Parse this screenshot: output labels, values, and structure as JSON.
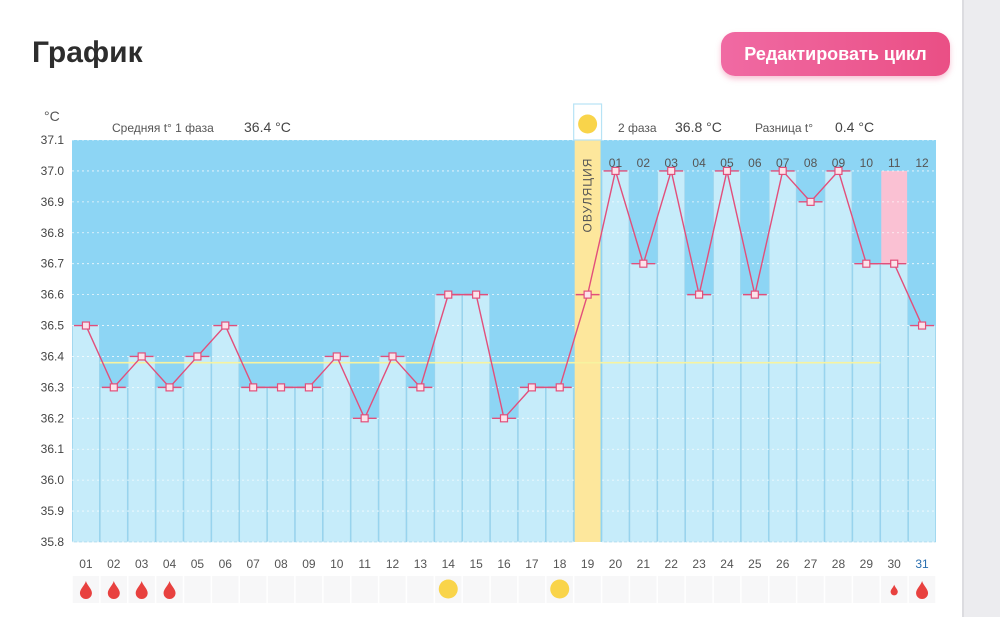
{
  "header": {
    "title": "График",
    "edit_button_label": "Редактировать цикл"
  },
  "stats": {
    "unit": "°C",
    "phase1_label": "Средняя t° 1 фаза",
    "phase1_value": "36.4 °C",
    "phase2_label": "2 фаза",
    "phase2_value": "36.8 °C",
    "diff_label": "Разница t°",
    "diff_value": "0.4 °C"
  },
  "colors": {
    "chart_bg": "#8dd5f4",
    "bar_fill": "#c6ecfa",
    "line": "#e24f7b",
    "ovulation": "#fde79c",
    "highlight_bar": "#fac1d3",
    "coverline": "#f7f3a0",
    "accent": "#ea4f85"
  },
  "chart_data": {
    "type": "bar",
    "ylabel": "°C",
    "ylim": [
      35.8,
      37.1
    ],
    "yticks": [
      "37.1",
      "37.0",
      "36.9",
      "36.8",
      "36.7",
      "36.6",
      "36.5",
      "36.4",
      "36.3",
      "36.2",
      "36.1",
      "36.0",
      "35.9",
      "35.8"
    ],
    "categories": [
      "01",
      "02",
      "03",
      "04",
      "05",
      "06",
      "07",
      "08",
      "09",
      "10",
      "11",
      "12",
      "13",
      "14",
      "15",
      "16",
      "17",
      "18",
      "19",
      "20",
      "21",
      "22",
      "23",
      "24",
      "25",
      "26",
      "27",
      "28",
      "29",
      "30",
      "31"
    ],
    "values": [
      36.5,
      36.3,
      36.4,
      36.3,
      36.4,
      36.5,
      36.3,
      36.3,
      36.3,
      36.4,
      36.2,
      36.4,
      36.3,
      36.6,
      36.6,
      36.2,
      36.3,
      36.3,
      36.6,
      37.0,
      36.7,
      37.0,
      36.6,
      37.0,
      36.6,
      37.0,
      36.9,
      37.0,
      36.7,
      36.7,
      36.5
    ],
    "phase2_day_labels": [
      "01",
      "02",
      "03",
      "04",
      "05",
      "06",
      "07",
      "08",
      "09",
      "10",
      "11",
      "12"
    ],
    "ovulation_day": "19",
    "ovulation_label": "ОВУЛЯЦИЯ",
    "highlight_day": "30",
    "coverline_value": 36.38,
    "grid": true
  },
  "markers": {
    "period_days": [
      "01",
      "02",
      "03",
      "04",
      "30",
      "31"
    ],
    "light_period_days": [
      "30"
    ],
    "sun_days": [
      "14",
      "18"
    ],
    "marker_icons": {
      "period": "blood-drop-icon",
      "sun": "sun-icon"
    }
  }
}
